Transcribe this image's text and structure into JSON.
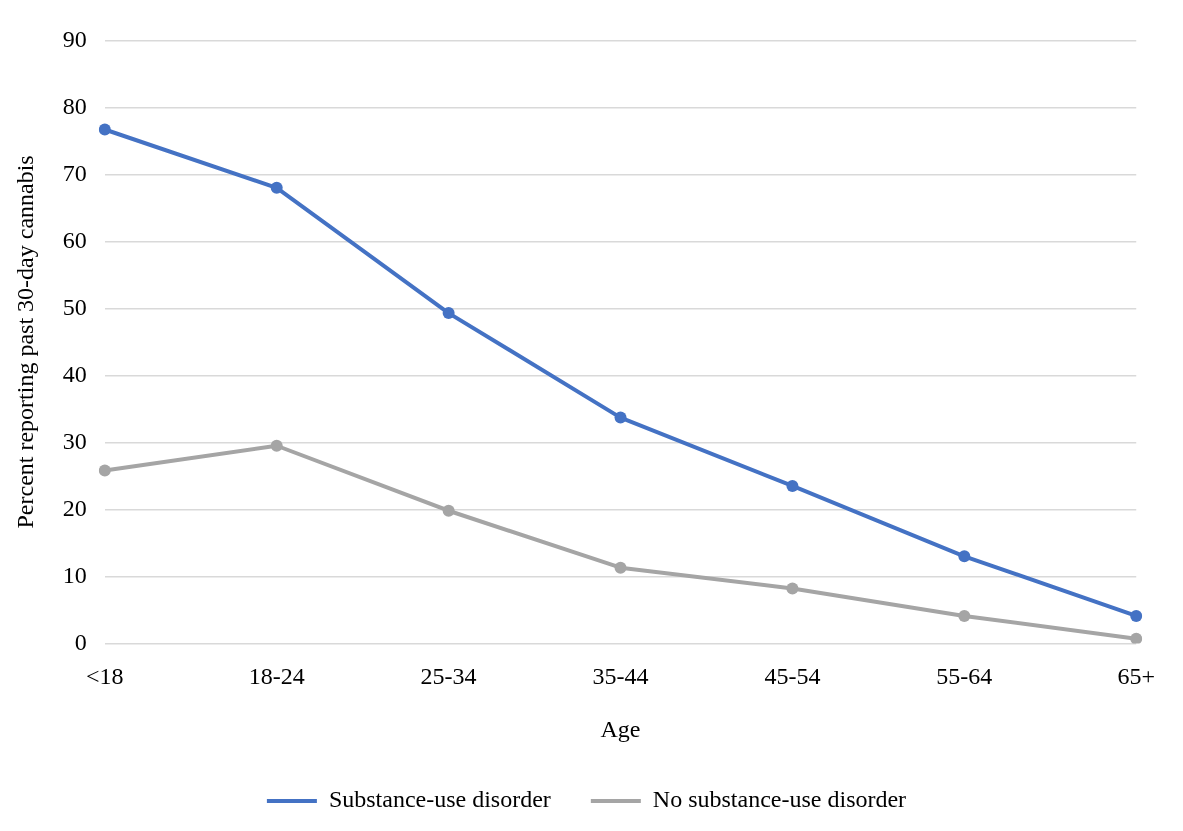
{
  "chart_data": {
    "type": "line",
    "xlabel": "Age",
    "ylabel": "Percent reporting past 30-day cannabis",
    "categories": [
      "<18",
      "18-24",
      "25-34",
      "35-44",
      "45-54",
      "55-64",
      "65+"
    ],
    "series": [
      {
        "name": "Substance-use disorder",
        "color": "#4472c4",
        "values": [
          76.7,
          68.0,
          49.3,
          33.7,
          23.5,
          13.0,
          4.1
        ]
      },
      {
        "name": "No substance-use disorder",
        "color": "#a5a5a5",
        "values": [
          25.8,
          29.5,
          19.8,
          11.3,
          8.2,
          4.1,
          0.7
        ]
      }
    ],
    "ylim": [
      0,
      90
    ],
    "yticks": [
      0,
      10,
      20,
      30,
      40,
      50,
      60,
      70,
      80,
      90
    ],
    "grid": "y",
    "legend": "bottom",
    "marker": "circle",
    "line_style": "solid"
  }
}
